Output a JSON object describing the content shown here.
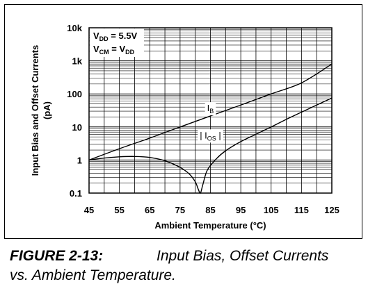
{
  "chart_data": {
    "type": "line",
    "y_scale": "log",
    "xlim": [
      45,
      125
    ],
    "ylim": [
      0.1,
      10000
    ],
    "grid": true,
    "xlabel": "Ambient Temperature (°C)",
    "ylabel_lines": [
      "Input Bias and Offset Currents",
      "(pA)"
    ],
    "x_ticks": [
      "45",
      "55",
      "65",
      "75",
      "85",
      "95",
      "105",
      "115",
      "125"
    ],
    "y_ticks": [
      "0.1",
      "1",
      "10",
      "100",
      "1k",
      "10k"
    ],
    "conditions": [
      {
        "main": "V",
        "sub": "DD",
        "rest": " = 5.5V"
      },
      {
        "main": "V",
        "sub": "CM",
        "rest": " = V",
        "sub2": "DD"
      }
    ],
    "series": [
      {
        "name": "I",
        "name_sub": "B",
        "label_x": 85,
        "label_y": 30,
        "x": [
          45,
          55,
          65,
          75,
          85,
          95,
          105,
          115,
          125
        ],
        "y": [
          1,
          2.2,
          4.6,
          10,
          21.5,
          46,
          100,
          215,
          800
        ]
      },
      {
        "name": "| I",
        "name_sub": "OS",
        "name_tail": " |",
        "label_x": 85,
        "label_y": 4.5,
        "x": [
          45,
          50,
          55,
          60,
          65,
          70,
          75,
          78,
          80,
          81,
          81.7,
          82.5,
          84,
          87,
          90,
          95,
          100,
          105,
          110,
          115,
          120,
          125
        ],
        "y": [
          1,
          1.15,
          1.25,
          1.28,
          1.2,
          0.95,
          0.6,
          0.38,
          0.22,
          0.13,
          0.1,
          0.18,
          0.5,
          1.1,
          1.9,
          3.6,
          6,
          10,
          17,
          28,
          46,
          75
        ]
      }
    ]
  },
  "caption": {
    "figure": "FIGURE 2-13:",
    "line1": "Input Bias, Offset Currents",
    "line2": "vs. Ambient Temperature."
  }
}
